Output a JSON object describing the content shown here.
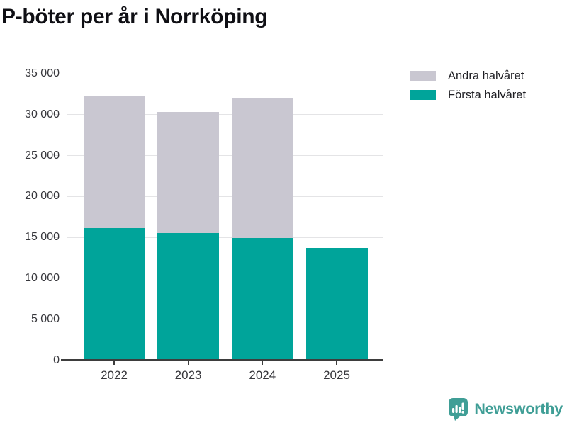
{
  "title": "P-böter per år i Norrköping",
  "chart_data": {
    "type": "bar",
    "stacked": true,
    "title": "P-böter per år i Norrköping",
    "categories": [
      "2022",
      "2023",
      "2024",
      "2025"
    ],
    "series": [
      {
        "name": "Första halvåret",
        "color": "#00a49a",
        "values": [
          16100,
          15500,
          14900,
          13700
        ]
      },
      {
        "name": "Andra halvåret",
        "color": "#c9c7d1",
        "values": [
          16200,
          14800,
          17200,
          0
        ]
      }
    ],
    "totals": [
      32300,
      30300,
      32100,
      13700
    ],
    "legend": [
      {
        "label": "Andra halvåret",
        "color": "#c9c7d1"
      },
      {
        "label": "Första halvåret",
        "color": "#00a49a"
      }
    ],
    "legend_position": "top-right",
    "xlabel": "",
    "ylabel": "",
    "ylim": [
      0,
      35000
    ],
    "ytick_step": 5000,
    "ytick_labels": [
      "0",
      "5 000",
      "10 000",
      "15 000",
      "20 000",
      "25 000",
      "30 000",
      "35 000"
    ],
    "grid": "horizontal"
  },
  "footer": {
    "brand": "Newsworthy",
    "logo_icon": "newsworthy-speech-bubble-bar-chart-icon"
  }
}
